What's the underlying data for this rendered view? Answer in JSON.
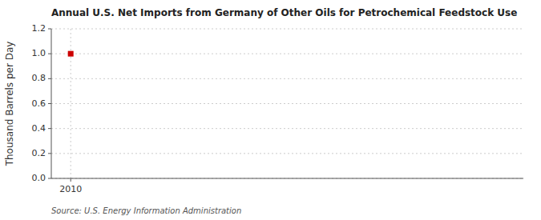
{
  "chart_data": {
    "type": "scatter",
    "title": "Annual U.S. Net Imports from Germany of Other Oils for Petrochemical Feedstock Use",
    "ylabel": "Thousand Barrels per Day",
    "annotations": [
      "Source: U.S. Energy Information Administration"
    ],
    "x": [
      2010
    ],
    "values": [
      1.0
    ],
    "color": "#cc0000",
    "marker": "square",
    "xlim": [
      2009.4,
      2024
    ],
    "xticks": [
      2010
    ],
    "ylim": [
      0.0,
      1.2
    ],
    "yticks": [
      {
        "value": 0.0,
        "label": "0.0"
      },
      0.2,
      0.4,
      0.6,
      0.8,
      {
        "value": 1.0,
        "label": "1.0"
      },
      1.2
    ],
    "grid": true
  }
}
